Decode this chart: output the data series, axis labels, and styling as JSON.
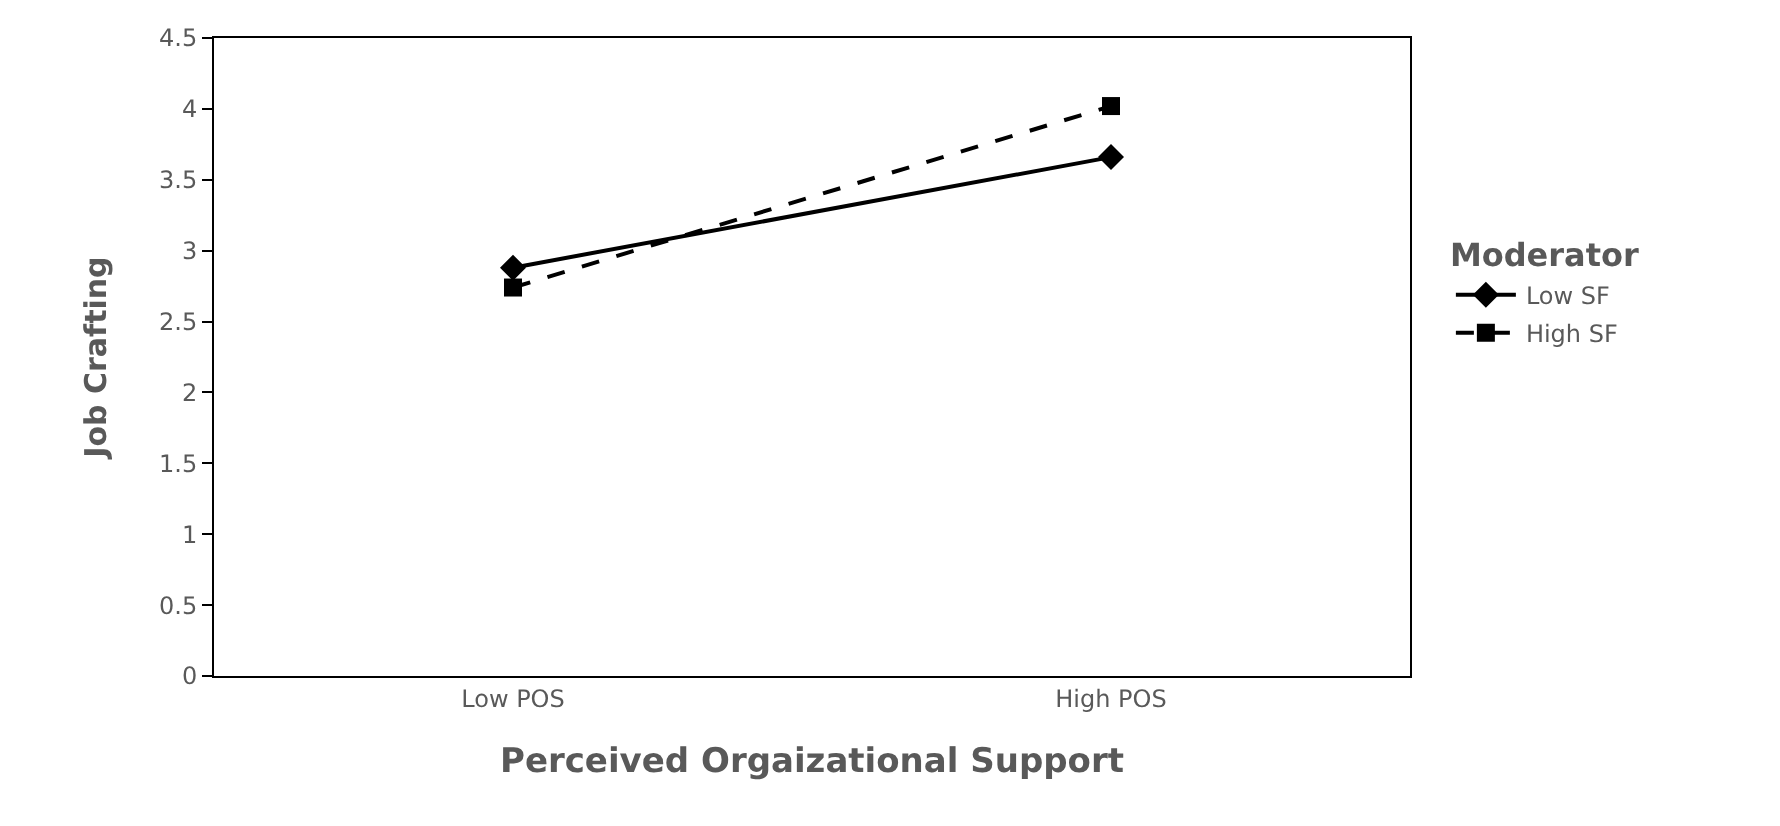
{
  "chart_data": {
    "type": "line",
    "xlabel": "Perceived Orgaizational Support",
    "ylabel": "Job Crafting",
    "legend_title": "Moderator",
    "categories": [
      "Low POS",
      "High POS"
    ],
    "series": [
      {
        "name": "Low SF",
        "color": "#000000",
        "values": [
          2.88,
          3.66
        ],
        "marker": "diamond",
        "line_style": "solid"
      },
      {
        "name": "High SF",
        "color": "#000000",
        "values": [
          2.74,
          4.02
        ],
        "marker": "square",
        "line_style": "dashed"
      }
    ],
    "ylim": [
      0,
      4.5
    ],
    "yticks": [
      0,
      0.5,
      1,
      1.5,
      2,
      2.5,
      3,
      3.5,
      4,
      4.5
    ],
    "legend": "right"
  }
}
